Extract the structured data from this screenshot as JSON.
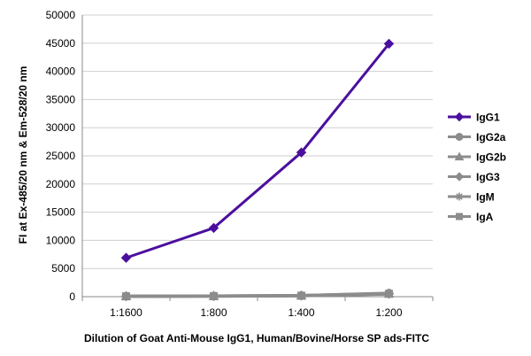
{
  "chart_data": {
    "type": "line",
    "title": "",
    "xlabel": "Dilution of Goat Anti-Mouse IgG1, Human/Bovine/Horse SP ads-FITC",
    "ylabel": "FI at Ex-485/20 nm & Em-528/20 nm",
    "categories": [
      "1:1600",
      "1:800",
      "1:400",
      "1:200"
    ],
    "ylim": [
      0,
      50000
    ],
    "yticks": [
      0,
      5000,
      10000,
      15000,
      20000,
      25000,
      30000,
      35000,
      40000,
      45000,
      50000
    ],
    "grid": true,
    "legend_position": "right",
    "series": [
      {
        "name": "IgG1",
        "values": [
          6900,
          12200,
          25600,
          44900
        ],
        "color": "#4b0f9e",
        "marker": "diamond"
      },
      {
        "name": "IgG2a",
        "values": [
          80,
          120,
          200,
          600
        ],
        "color": "#8c8c8c",
        "marker": "circle"
      },
      {
        "name": "IgG2b",
        "values": [
          80,
          110,
          190,
          560
        ],
        "color": "#8c8c8c",
        "marker": "triangle"
      },
      {
        "name": "IgG3",
        "values": [
          70,
          100,
          180,
          520
        ],
        "color": "#8c8c8c",
        "marker": "diamond"
      },
      {
        "name": "IgM",
        "values": [
          60,
          90,
          160,
          480
        ],
        "color": "#8c8c8c",
        "marker": "star"
      },
      {
        "name": "IgA",
        "values": [
          60,
          90,
          170,
          500
        ],
        "color": "#8c8c8c",
        "marker": "square"
      }
    ]
  }
}
